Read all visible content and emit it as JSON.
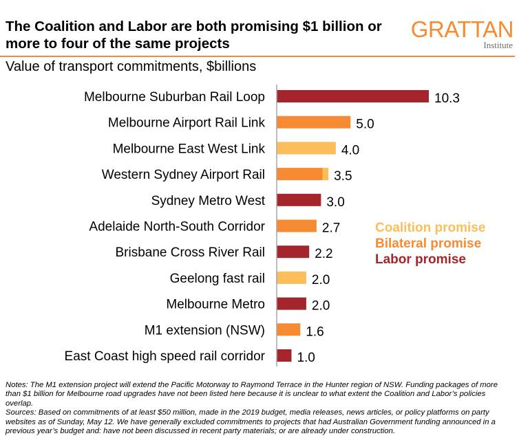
{
  "header": {
    "title": "The Coalition and Labor are both promising $1 billion or more to four of the same projects",
    "logo_text": "GRATTAN",
    "logo_sub": "Institute",
    "subtitle": "Value of transport commitments, $billions"
  },
  "colors": {
    "coalition": "#fcbd5b",
    "bilateral": "#f68b33",
    "labor": "#a4262c",
    "rule": "#f68b33",
    "axis": "#a6a6a6"
  },
  "legend": {
    "coalition": "Coalition promise",
    "bilateral": "Bilateral promise",
    "labor": "Labor promise"
  },
  "chart_data": {
    "type": "bar",
    "orientation": "horizontal",
    "stacked": true,
    "unit": "$billions",
    "categories": [
      "Melbourne Suburban Rail Loop",
      "Melbourne Airport Rail Link",
      "Melbourne East West Link",
      "Western Sydney Airport Rail",
      "Sydney Metro West",
      "Adelaide North-South Corridor",
      "Brisbane Cross River Rail",
      "Geelong fast rail",
      "Melbourne Metro",
      "M1 extension (NSW)",
      "East Coast high speed rail corridor"
    ],
    "totals": [
      "10.3",
      "5.0",
      "4.0",
      "3.5",
      "3.0",
      "2.7",
      "2.2",
      "2.0",
      "2.0",
      "1.6",
      "1.0"
    ],
    "segments": [
      [
        {
          "type": "labor",
          "value": 10.3
        }
      ],
      [
        {
          "type": "bilateral",
          "value": 5.0
        }
      ],
      [
        {
          "type": "coalition",
          "value": 4.0
        }
      ],
      [
        {
          "type": "bilateral",
          "value": 3.1
        },
        {
          "type": "coalition",
          "value": 0.4
        }
      ],
      [
        {
          "type": "labor",
          "value": 3.0
        }
      ],
      [
        {
          "type": "bilateral",
          "value": 2.7
        }
      ],
      [
        {
          "type": "labor",
          "value": 2.2
        }
      ],
      [
        {
          "type": "coalition",
          "value": 2.0
        }
      ],
      [
        {
          "type": "labor",
          "value": 2.0
        }
      ],
      [
        {
          "type": "bilateral",
          "value": 1.6
        }
      ],
      [
        {
          "type": "labor",
          "value": 1.0
        }
      ]
    ],
    "xlim": [
      0,
      10.3
    ],
    "grid": false,
    "legend_position": "right"
  },
  "notes": {
    "notes_text": "Notes: The M1 extension project will extend the Pacific Motorway to Raymond Terrace in the Hunter region of NSW. Funding packages of more than $1 billion for Melbourne road upgrades have not been listed here because it is unclear to what extent the Coalition and Labor’s policies overlap.",
    "sources_text": "Sources: Based on commitments of at least $50 million, made in the 2019 budget, media releases, news articles, or policy platforms on party websites as of Sunday, May 12. We have generally excluded commitments to projects that had Australian Government funding announced in a previous year’s budget and: have not been discussed in recent party materials; or are already under construction."
  }
}
